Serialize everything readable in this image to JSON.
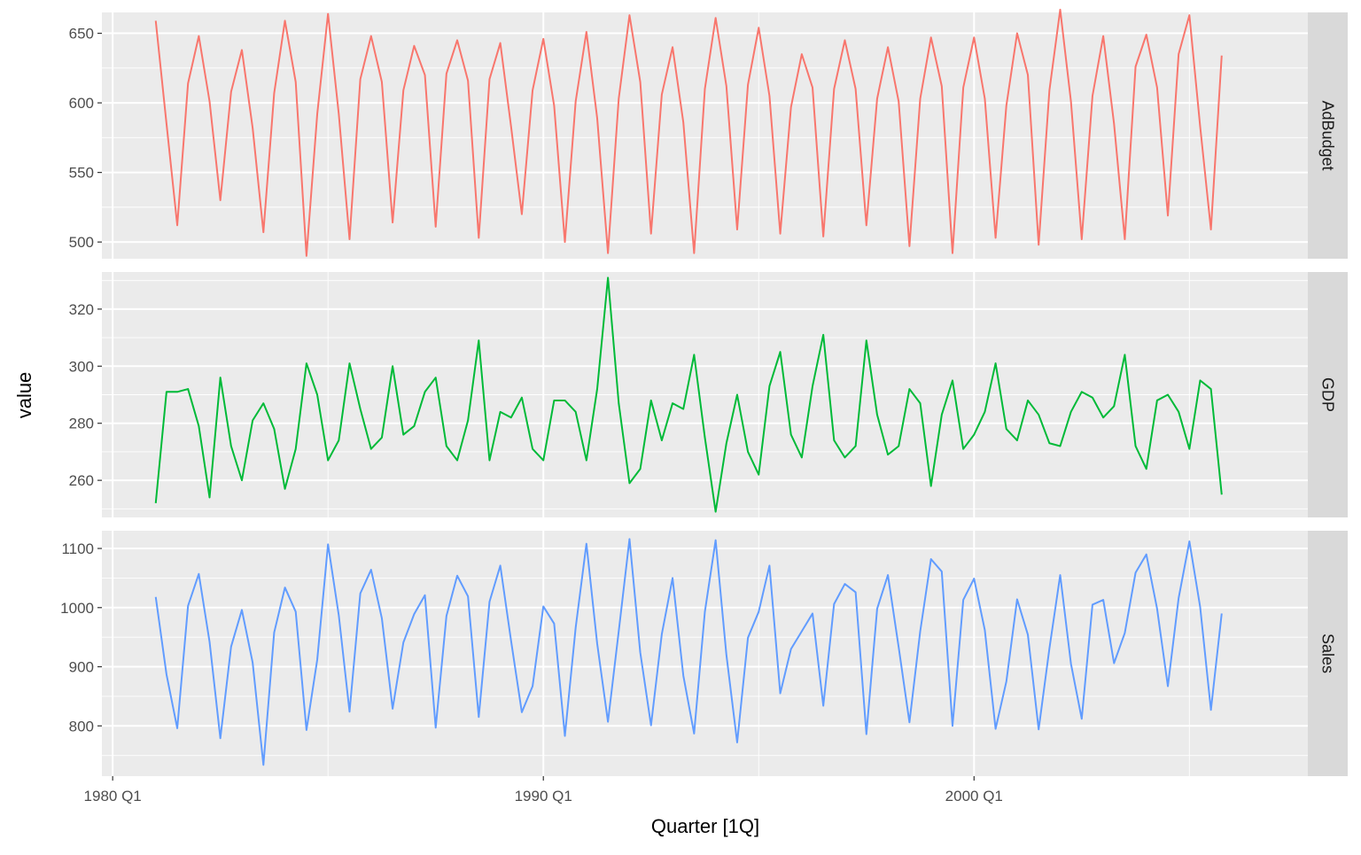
{
  "chart_data": {
    "type": "line",
    "xlabel": "Quarter [1Q]",
    "ylabel": "value",
    "x_start": "1981 Q1",
    "x_ticks": [
      "1980 Q1",
      "1990 Q1",
      "2000 Q1"
    ],
    "xlim": [
      "1979 Q4",
      "2007 Q4"
    ],
    "legend": "none",
    "grid": true,
    "facets": [
      {
        "name": "AdBudget",
        "color": "#F8766D",
        "ylim": [
          488,
          665
        ],
        "y_ticks": [
          500,
          550,
          600,
          650
        ],
        "values": [
          659,
          585,
          512,
          614,
          648,
          601,
          530,
          608,
          638,
          582,
          507,
          607,
          659,
          615,
          490,
          592,
          664,
          592,
          502,
          617,
          648,
          615,
          514,
          609,
          641,
          620,
          511,
          621,
          645,
          616,
          503,
          617,
          643,
          583,
          520,
          609,
          646,
          598,
          500,
          601,
          651,
          589,
          492,
          603,
          663,
          615,
          506,
          606,
          640,
          586,
          492,
          610,
          661,
          612,
          509,
          613,
          654,
          605,
          506,
          597,
          635,
          611,
          504,
          610,
          645,
          610,
          512,
          603,
          640,
          601,
          497,
          603,
          647,
          612,
          492,
          611,
          647,
          603,
          503,
          598,
          650,
          620,
          498,
          609,
          667,
          601,
          502,
          605,
          648,
          585,
          502,
          626,
          649,
          611,
          519,
          635,
          663,
          583,
          509,
          634
        ]
      },
      {
        "name": "GDP",
        "color": "#00BA38",
        "ylim": [
          247,
          333
        ],
        "y_ticks": [
          260,
          280,
          300,
          320
        ],
        "values": [
          252,
          291,
          291,
          292,
          279,
          254,
          296,
          272,
          260,
          281,
          287,
          278,
          257,
          271,
          301,
          290,
          267,
          274,
          301,
          285,
          271,
          275,
          300,
          276,
          279,
          291,
          296,
          272,
          267,
          281,
          309,
          267,
          284,
          282,
          289,
          271,
          267,
          288,
          288,
          284,
          267,
          292,
          331,
          287,
          259,
          264,
          288,
          274,
          287,
          285,
          304,
          275,
          249,
          273,
          290,
          270,
          262,
          293,
          305,
          276,
          268,
          293,
          311,
          274,
          268,
          272,
          309,
          283,
          269,
          272,
          292,
          287,
          258,
          283,
          295,
          271,
          276,
          284,
          301,
          278,
          274,
          288,
          283,
          273,
          272,
          284,
          291,
          289,
          282,
          286,
          304,
          272,
          264,
          288,
          290,
          284,
          271,
          295,
          292,
          255
        ]
      },
      {
        "name": "Sales",
        "color": "#619CFF",
        "ylim": [
          715,
          1130
        ],
        "y_ticks": [
          800,
          900,
          1000,
          1100
        ],
        "values": [
          1018,
          887,
          796,
          1003,
          1057,
          942,
          779,
          934,
          996,
          907,
          734,
          958,
          1034,
          993,
          793,
          912,
          1107,
          987,
          824,
          1024,
          1064,
          982,
          829,
          941,
          989,
          1021,
          797,
          986,
          1054,
          1019,
          815,
          1010,
          1071,
          944,
          823,
          867,
          1002,
          973,
          783,
          966,
          1108,
          939,
          807,
          960,
          1116,
          924,
          801,
          955,
          1050,
          885,
          787,
          993,
          1114,
          920,
          772,
          949,
          993,
          1071,
          855,
          930,
          960,
          990,
          834,
          1006,
          1040,
          1026,
          786,
          998,
          1055,
          933,
          806,
          960,
          1082,
          1061,
          800,
          1013,
          1049,
          962,
          795,
          875,
          1014,
          954,
          794,
          931,
          1055,
          905,
          812,
          1005,
          1013,
          906,
          957,
          1059,
          1090,
          998,
          867,
          1016,
          1112,
          1001,
          827,
          990
        ]
      }
    ]
  }
}
